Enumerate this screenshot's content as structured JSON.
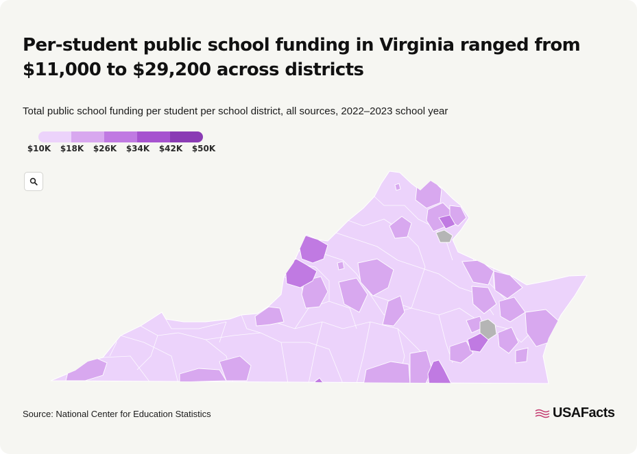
{
  "header": {
    "title": "Per-student public school funding in Virginia ranged from $11,000 to $29,200 across districts",
    "subtitle": "Total public school funding per student per school district, all sources, 2022–2023 school year"
  },
  "legend": {
    "labels": [
      "$10K",
      "$18K",
      "$26K",
      "$34K",
      "$42K",
      "$50K"
    ],
    "colors": [
      "#ecd3fb",
      "#d8a8ef",
      "#c07ae2",
      "#a653cf",
      "#8a3bb4",
      "#64157d"
    ],
    "no_data_color": "#b5b5b5"
  },
  "controls": {
    "search_icon": "magnifier-icon"
  },
  "map": {
    "region": "Virginia",
    "unit": "school district",
    "min_value": 11000,
    "max_value": 29200
  },
  "footer": {
    "source": "Source: National Center for Education Statistics",
    "brand": "USAFacts",
    "brand_icon": "usa-flag-icon",
    "brand_color": "#c3386e"
  }
}
